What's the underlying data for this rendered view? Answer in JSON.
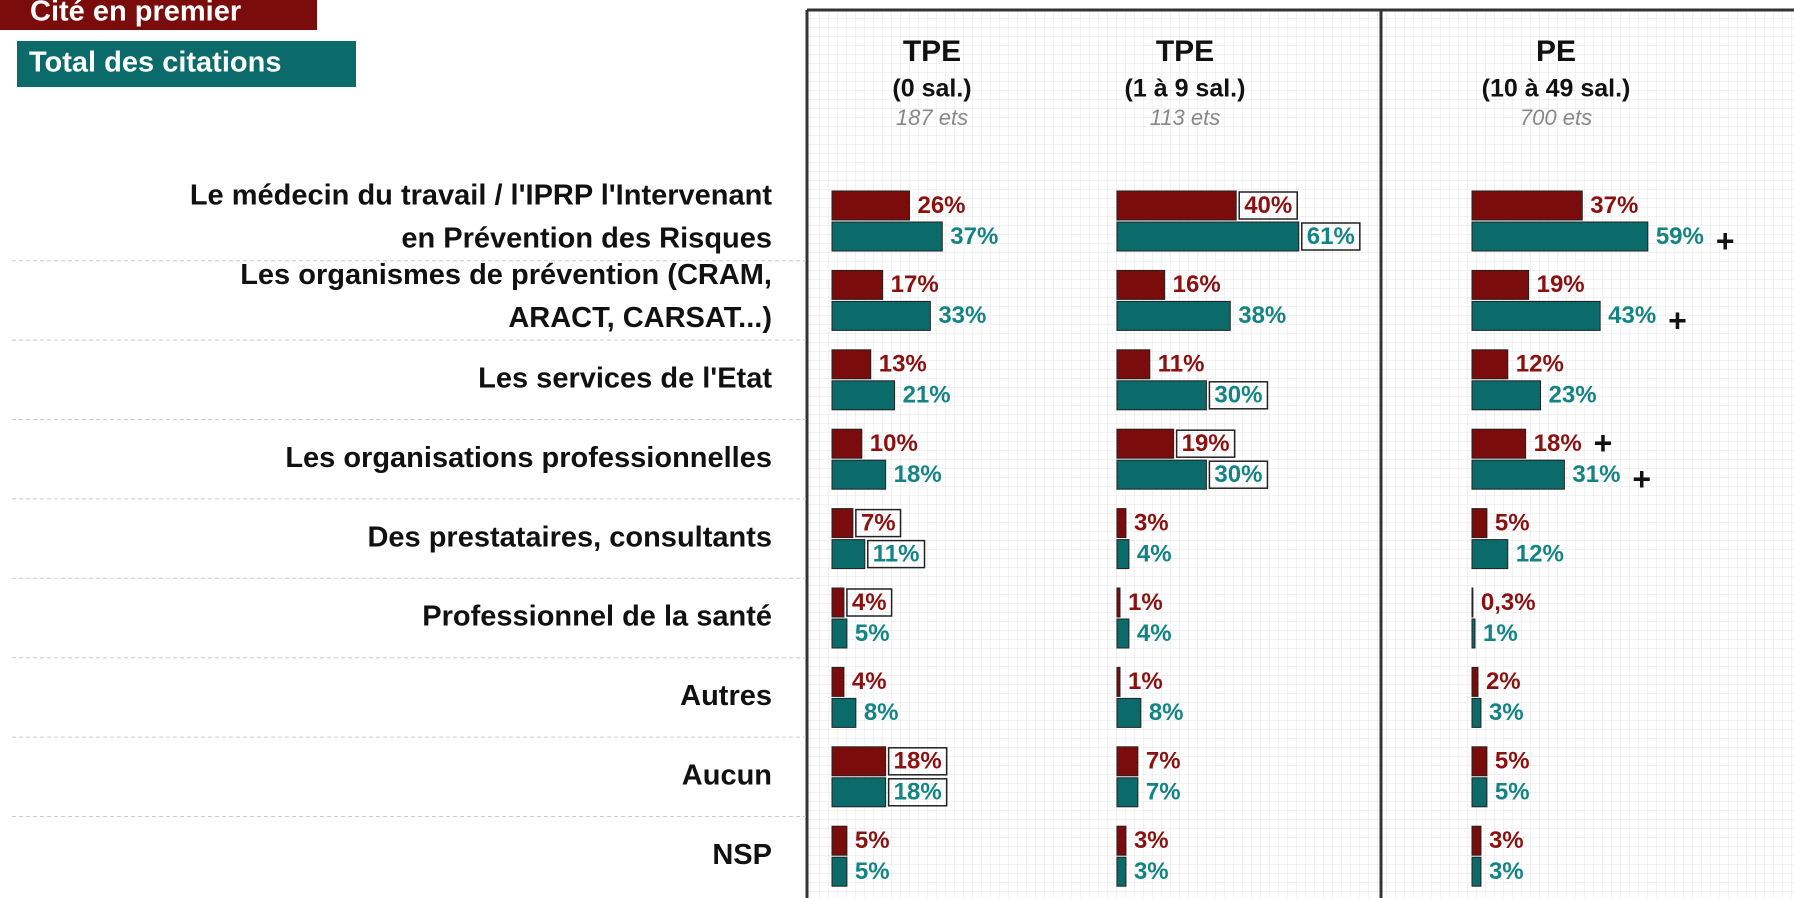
{
  "chart_data": {
    "type": "bar",
    "categories": [
      [
        "Le médecin du travail / l'IPRP l'Intervenant",
        "en Prévention des Risques"
      ],
      [
        "Les organismes de prévention (CRAM,",
        "ARACT, CARSAT...)"
      ],
      [
        "Les services de l'Etat"
      ],
      [
        "Les organisations professionnelles"
      ],
      [
        "Des prestataires, consultants"
      ],
      [
        "Professionnel de la santé"
      ],
      [
        "Autres"
      ],
      [
        "Aucun"
      ],
      [
        "NSP"
      ]
    ],
    "series": [
      {
        "name": "Cité en premier",
        "color": "#7a0c0c",
        "label_color": "#8b1010"
      },
      {
        "name": "Total des citations",
        "color": "#0b6a6a",
        "label_color": "#138484"
      }
    ],
    "panels": [
      {
        "title": "TPE",
        "subtitle": "(0 sal.)",
        "base": "187 ets",
        "values": [
          [
            26,
            17,
            13,
            10,
            7,
            4,
            4,
            18,
            5
          ],
          [
            37,
            33,
            21,
            18,
            11,
            5,
            8,
            18,
            5
          ]
        ],
        "value_labels": [
          [
            "26%",
            "17%",
            "13%",
            "10%",
            "7%",
            "4%",
            "4%",
            "18%",
            "5%"
          ],
          [
            "37%",
            "33%",
            "21%",
            "18%",
            "11%",
            "5%",
            "8%",
            "18%",
            "5%"
          ]
        ],
        "boxed": [
          [
            false,
            false,
            false,
            false,
            true,
            true,
            false,
            true,
            false
          ],
          [
            false,
            false,
            false,
            false,
            true,
            false,
            false,
            true,
            false
          ]
        ],
        "flags": [
          [
            null,
            null,
            null,
            null,
            null,
            null,
            null,
            null,
            null
          ],
          [
            null,
            null,
            null,
            null,
            null,
            null,
            null,
            null,
            null
          ]
        ]
      },
      {
        "title": "TPE",
        "subtitle": "(1 à 9 sal.)",
        "base": "113 ets",
        "values": [
          [
            40,
            16,
            11,
            19,
            3,
            1,
            1,
            7,
            3
          ],
          [
            61,
            38,
            30,
            30,
            4,
            4,
            8,
            7,
            3
          ]
        ],
        "value_labels": [
          [
            "40%",
            "16%",
            "11%",
            "19%",
            "3%",
            "1%",
            "1%",
            "7%",
            "3%"
          ],
          [
            "61%",
            "38%",
            "30%",
            "30%",
            "4%",
            "4%",
            "8%",
            "7%",
            "3%"
          ]
        ],
        "boxed": [
          [
            true,
            false,
            false,
            true,
            false,
            false,
            false,
            false,
            false
          ],
          [
            true,
            false,
            true,
            true,
            false,
            false,
            false,
            false,
            false
          ]
        ],
        "flags": [
          [
            null,
            null,
            null,
            null,
            null,
            null,
            null,
            null,
            null
          ],
          [
            null,
            null,
            null,
            null,
            null,
            null,
            null,
            null,
            null
          ]
        ]
      },
      {
        "title": "PE",
        "subtitle": "(10 à 49 sal.)",
        "base": "700 ets",
        "values": [
          [
            37,
            19,
            12,
            18,
            5,
            0.3,
            2,
            5,
            3
          ],
          [
            59,
            43,
            23,
            31,
            12,
            1,
            3,
            5,
            3
          ]
        ],
        "value_labels": [
          [
            "37%",
            "19%",
            "12%",
            "18%",
            "5%",
            "0,3%",
            "2%",
            "5%",
            "3%"
          ],
          [
            "59%",
            "43%",
            "23%",
            "31%",
            "12%",
            "1%",
            "3%",
            "5%",
            "3%"
          ]
        ],
        "boxed": [
          [
            false,
            false,
            false,
            false,
            false,
            false,
            false,
            false,
            false
          ],
          [
            false,
            false,
            false,
            false,
            false,
            false,
            false,
            false,
            false
          ]
        ],
        "flags": [
          [
            null,
            null,
            null,
            "+",
            null,
            null,
            null,
            null,
            null
          ],
          [
            "+",
            "+",
            null,
            "+",
            null,
            null,
            null,
            null,
            null
          ]
        ]
      }
    ]
  }
}
